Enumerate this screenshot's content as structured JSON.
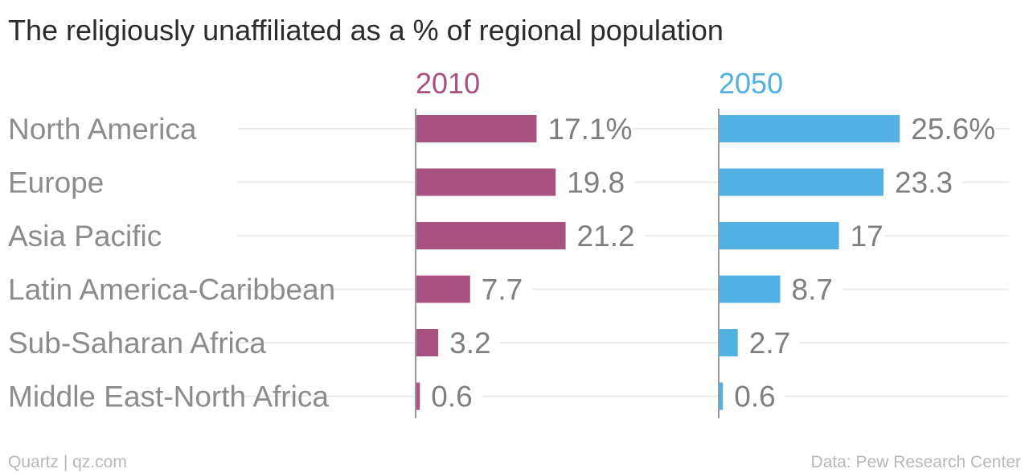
{
  "chart_data": {
    "type": "bar",
    "orientation": "horizontal",
    "layout": "small-multiples",
    "title": "The religiously unaffiliated as a % of regional population",
    "categories": [
      "North America",
      "Europe",
      "Asia Pacific",
      "Latin America-Caribbean",
      "Sub-Saharan Africa",
      "Middle East-North Africa"
    ],
    "series": [
      {
        "name": "2010",
        "color": "#a8527f",
        "values": [
          17.1,
          19.8,
          21.2,
          7.7,
          3.2,
          0.6
        ],
        "value_labels": [
          "17.1%",
          "19.8",
          "21.2",
          "7.7",
          "3.2",
          "0.6"
        ]
      },
      {
        "name": "2050",
        "color": "#52b1e2",
        "values": [
          25.6,
          23.3,
          17,
          8.7,
          2.7,
          0.6
        ],
        "value_labels": [
          "25.6%",
          "23.3",
          "17",
          "8.7",
          "2.7",
          "0.6"
        ]
      }
    ],
    "xlim": [
      0,
      30
    ],
    "grid": true,
    "source": "Data: Pew Research Center",
    "credit": "Quartz | qz.com"
  }
}
